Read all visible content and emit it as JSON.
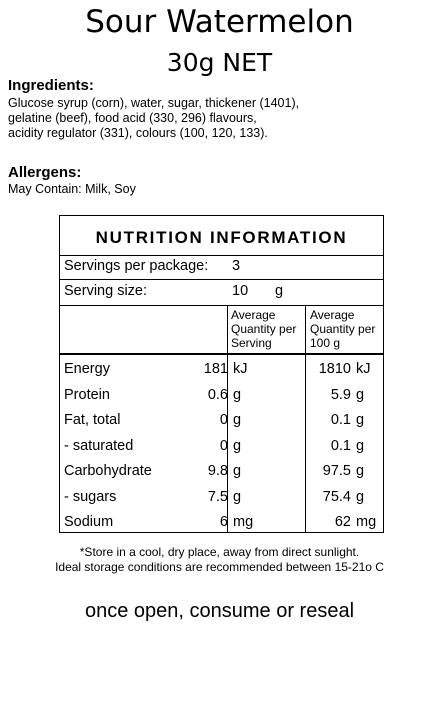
{
  "header": {
    "product": "Sour Watermelon",
    "net": "30g NET"
  },
  "ingredients": {
    "heading": "Ingredients:",
    "lines": [
      "Glucose syrup (corn), water, sugar, thickener (1401),",
      "gelatine (beef), food acid (330, 296) flavours,",
      "acidity regulator (331), colours (100, 120, 133)."
    ]
  },
  "allergens": {
    "heading": "Allergens:",
    "text": "May Contain: Milk, Soy"
  },
  "nutrition": {
    "title": "NUTRITION INFORMATION",
    "servings_label": "Servings per package:",
    "servings_value": "3",
    "serving_size_label": "Serving size:",
    "serving_size_value": "10",
    "serving_size_unit": "g",
    "col1": [
      "Average",
      "Quantity per",
      "Serving"
    ],
    "col2": [
      "Average",
      "Quantity per",
      "100 g"
    ],
    "rows": [
      {
        "label": "Energy",
        "v1": "181",
        "u1": "kJ",
        "v2": "1810",
        "u2": "kJ"
      },
      {
        "label": "Protein",
        "v1": "0.6",
        "u1": "g",
        "v2": "5.9",
        "u2": "g"
      },
      {
        "label": "Fat, total",
        "v1": "0",
        "u1": "g",
        "v2": "0.1",
        "u2": "g"
      },
      {
        "label": "- saturated",
        "v1": "0",
        "u1": "g",
        "v2": "0.1",
        "u2": "g"
      },
      {
        "label": "Carbohydrate",
        "v1": "9.8",
        "u1": "g",
        "v2": "97.5",
        "u2": "g"
      },
      {
        "label": "- sugars",
        "v1": "7.5",
        "u1": "g",
        "v2": "75.4",
        "u2": "g"
      },
      {
        "label": "Sodium",
        "v1": "6",
        "u1": "mg",
        "v2": "62",
        "u2": "mg"
      }
    ]
  },
  "footer": {
    "storage1": "*Store in a cool, dry place, away from direct sunlight.",
    "storage2": "Ideal storage conditions are recommended between 15-21o C",
    "reseal": "once open, consume or reseal"
  }
}
